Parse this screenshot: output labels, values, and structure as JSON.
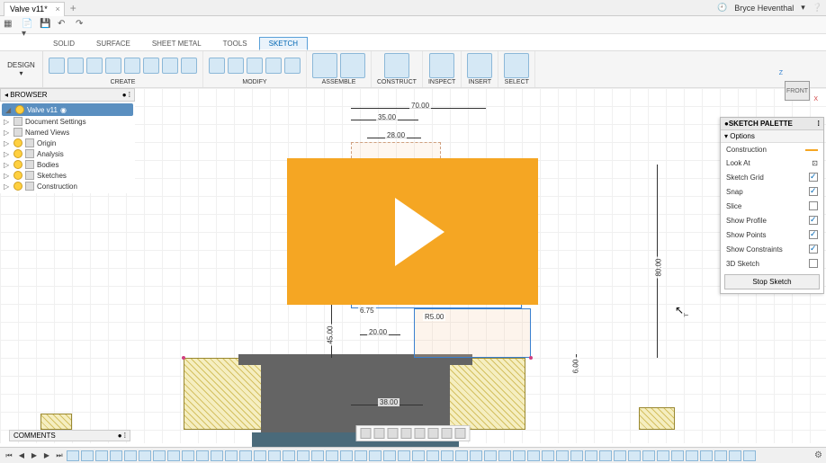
{
  "titlebar": {
    "tab_name": "Valve v11*",
    "user_name": "Bryce Heventhal"
  },
  "quickbar": {
    "design_label": "DESIGN"
  },
  "ribbon": {
    "tabs": [
      "SOLID",
      "SURFACE",
      "SHEET METAL",
      "TOOLS",
      "SKETCH"
    ],
    "active_tab": 4,
    "groups": {
      "create": "CREATE",
      "modify": "MODIFY",
      "assemble": "ASSEMBLE",
      "construct": "CONSTRUCT",
      "inspect": "INSPECT",
      "insert": "INSERT",
      "select": "SELECT"
    }
  },
  "browser": {
    "title": "BROWSER",
    "root": "Valve v11",
    "items": [
      "Document Settings",
      "Named Views",
      "Origin",
      "Analysis",
      "Bodies",
      "Sketches",
      "Construction"
    ]
  },
  "palette": {
    "title": "SKETCH PALETTE",
    "section": "Options",
    "rows": [
      {
        "label": "Construction",
        "type": "line"
      },
      {
        "label": "Look At",
        "type": "icon"
      },
      {
        "label": "Sketch Grid",
        "type": "check",
        "checked": true
      },
      {
        "label": "Snap",
        "type": "check",
        "checked": true
      },
      {
        "label": "Slice",
        "type": "check",
        "checked": false
      },
      {
        "label": "Show Profile",
        "type": "check",
        "checked": true
      },
      {
        "label": "Show Points",
        "type": "check",
        "checked": true
      },
      {
        "label": "Show Constraints",
        "type": "check",
        "checked": true
      },
      {
        "label": "3D Sketch",
        "type": "check",
        "checked": false
      }
    ],
    "stop": "Stop Sketch"
  },
  "viewcube": {
    "face": "FRONT",
    "z": "Z",
    "x": "X"
  },
  "dimensions": {
    "d70": "70.00",
    "d35": "35.00",
    "d28": "28.00",
    "d675": "6.75",
    "d20": "20.00",
    "d45": "45.00",
    "d38": "38.00",
    "d80": "80.00",
    "d600": "6.00",
    "r5": "R5.00"
  },
  "comments": {
    "label": "COMMENTS"
  },
  "colors": {
    "accent": "#f5a623",
    "sketch": "#3a80d0",
    "hatch_dark": "#d4c060",
    "hatch_light": "#f5eec0",
    "part": "#646464",
    "bulb": "#ffd040"
  }
}
